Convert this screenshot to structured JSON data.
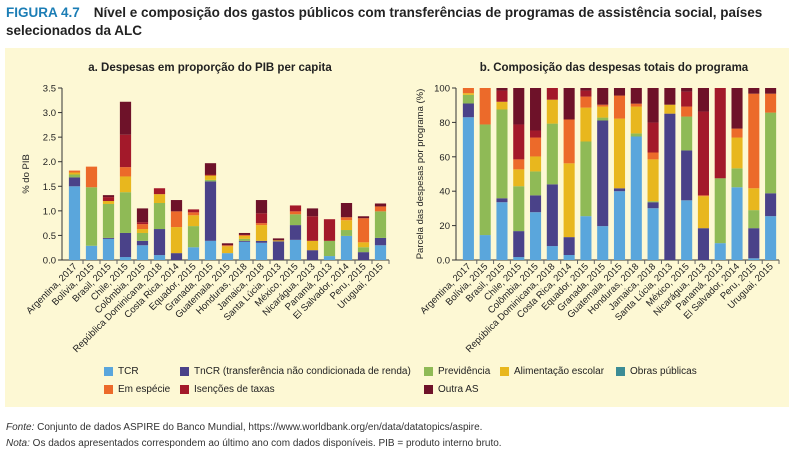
{
  "figure": {
    "label": "FIGURA 4.7",
    "title": "Nível e composição dos gastos públicos com transferências de programas de assistência social, países selecionados da ALC"
  },
  "legend": [
    {
      "name": "TCR",
      "color": "#5aa6dc"
    },
    {
      "name": "TnCR (transferência não condicionada de renda)",
      "color": "#4a4289"
    },
    {
      "name": "Previdência",
      "color": "#8fba56"
    },
    {
      "name": "Alimentação escolar",
      "color": "#e8b71e"
    },
    {
      "name": "Obras públicas",
      "color": "#3c8c95"
    },
    {
      "name": "Em espécie",
      "color": "#ec6a2a"
    },
    {
      "name": "Isenções de taxas",
      "color": "#a3192a"
    },
    {
      "name": "Outra AS",
      "color": "#6e1229"
    }
  ],
  "footnotes": {
    "source_label": "Fonte:",
    "source": " Conjunto de dados ASPIRE do Banco Mundial, https://www.worldbank.org/en/data/datatopics/aspire.",
    "note_label": "Nota:",
    "note": " Os dados apresentados correspondem ao último ano com dados disponíveis. PIB = produto interno bruto."
  },
  "chart_data": [
    {
      "type": "bar",
      "stacked": true,
      "title": "a. Despesas em proporção do PIB per capita",
      "xlabel": "",
      "ylabel": "% do PIB",
      "ylim": [
        0,
        3.5
      ],
      "yticks": [
        "0.0",
        "0.5",
        "1.0",
        "1.5",
        "2.0",
        "2.5",
        "3.0",
        "3.5"
      ],
      "categories": [
        "Argentina, 2017",
        "Bolívia, 2015",
        "Brasil, 2015",
        "Chile, 2015",
        "Colômbia, 2015",
        "República Dominicana, 2018",
        "Costa Rica, 2014",
        "Equador, 2015",
        "Granada, 2015",
        "Guatemala, 2015",
        "Honduras, 2018",
        "Jamaica, 2018",
        "Santa Lúcia, 2013",
        "México, 2015",
        "Nicarágua, 2013",
        "Panamá, 2013",
        "El Salvador, 2014",
        "Peru, 2015",
        "Uruguai, 2015"
      ],
      "series": [
        {
          "name": "TCR",
          "values": [
            1.5,
            0.29,
            0.43,
            0.06,
            0.3,
            0.1,
            0,
            0.26,
            0.39,
            0.14,
            0.37,
            0.35,
            0,
            0.41,
            0,
            0.08,
            0.49,
            0,
            0.3
          ]
        },
        {
          "name": "TnCR (transferência não condicionada de renda)",
          "values": [
            0.18,
            0,
            0.02,
            0.49,
            0.09,
            0.53,
            0.14,
            0,
            1.21,
            0,
            0.02,
            0.04,
            0.38,
            0.3,
            0.2,
            0,
            0,
            0.16,
            0.15
          ]
        },
        {
          "name": "Previdência",
          "values": [
            0.06,
            1.19,
            0.69,
            0.83,
            0.16,
            0.53,
            0,
            0.43,
            0.03,
            0,
            0.04,
            0,
            0,
            0.22,
            0,
            0.31,
            0.12,
            0.1,
            0.54
          ]
        },
        {
          "name": "Alimentação escolar",
          "values": [
            0.04,
            0,
            0.06,
            0.32,
            0.08,
            0.18,
            0.53,
            0.22,
            0.09,
            0.14,
            0.06,
            0.32,
            0.02,
            0,
            0.19,
            0,
            0.2,
            0.1,
            0
          ]
        },
        {
          "name": "Obras públicas",
          "values": [
            0,
            0,
            0,
            0,
            0,
            0,
            0,
            0,
            0,
            0,
            0,
            0,
            0,
            0,
            0,
            0,
            0,
            0,
            0
          ]
        },
        {
          "name": "Em espécie",
          "values": [
            0.04,
            0.42,
            0,
            0.19,
            0.1,
            0,
            0.32,
            0.06,
            0,
            0.02,
            0.02,
            0.04,
            0,
            0.06,
            0,
            0,
            0.06,
            0.49,
            0.1
          ]
        },
        {
          "name": "Isenções de taxas",
          "values": [
            0,
            0,
            0.08,
            0.66,
            0.04,
            0.12,
            0,
            0.06,
            0.02,
            0,
            0,
            0.2,
            0,
            0.12,
            0.5,
            0.44,
            0,
            0,
            0
          ]
        },
        {
          "name": "Outra AS",
          "values": [
            0,
            0,
            0.04,
            0.67,
            0.28,
            0,
            0.23,
            0,
            0.23,
            0.04,
            0.04,
            0.27,
            0.04,
            0,
            0.16,
            0,
            0.29,
            0.04,
            0.06
          ]
        }
      ]
    },
    {
      "type": "bar",
      "stacked": true,
      "title": "b. Composição das despesas totais do programa",
      "xlabel": "",
      "ylabel": "Parcela das despesas por programa (%)",
      "ylim": [
        0,
        100
      ],
      "yticks": [
        "0.0",
        "20",
        "40",
        "60",
        "80",
        "100"
      ],
      "categories": [
        "Argentina, 2017",
        "Bolívia, 2015",
        "Brasil, 2015",
        "Chile, 2015",
        "Colômbia, 2015",
        "República Dominicana, 2018",
        "Costa Rica, 2014",
        "Equador, 2015",
        "Granada, 2015",
        "Guatemala, 2015",
        "Honduras, 2018",
        "Jamaica, 2018",
        "Santa Lúcia, 2013",
        "México, 2015",
        "Nicarágua, 2013",
        "Panamá, 2013",
        "El Salvador, 2014",
        "Peru, 2015",
        "Uruguai, 2015"
      ],
      "series": [
        {
          "name": "TCR",
          "values": [
            83,
            14.5,
            33.6,
            1.7,
            27.8,
            8.1,
            2.9,
            25.5,
            19.7,
            40,
            71.8,
            30.1,
            0,
            34.7,
            0,
            9.8,
            42.3,
            1,
            25.5
          ]
        },
        {
          "name": "TnCR (transferência não condicionada de renda)",
          "values": [
            8,
            0,
            2.3,
            15.1,
            9.8,
            35.9,
            10.4,
            0,
            61.4,
            1.7,
            0,
            3.5,
            85.1,
            29,
            18.5,
            0,
            0,
            17.5,
            13.3
          ]
        },
        {
          "name": "Previdência",
          "values": [
            5,
            64.3,
            51.6,
            26.1,
            13.9,
            35.3,
            0,
            43.4,
            1.7,
            0,
            1.8,
            0.6,
            0,
            19.7,
            0,
            37.7,
            11,
            10.5,
            46.9
          ]
        },
        {
          "name": "Alimentação escolar",
          "values": [
            1,
            0,
            4.5,
            9.8,
            8.7,
            13.9,
            42.9,
            19.7,
            6.4,
            40.5,
            15.6,
            24.3,
            5.2,
            0,
            18.6,
            0,
            17.9,
            12.7,
            0
          ]
        },
        {
          "name": "Obras públicas",
          "values": [
            0,
            0,
            0,
            0,
            0,
            0,
            0,
            0,
            0,
            0,
            0,
            0,
            0,
            0,
            0,
            0,
            0,
            0,
            0
          ]
        },
        {
          "name": "Em espécie",
          "values": [
            3,
            21.2,
            0,
            5.8,
            11,
            0,
            25.5,
            6.4,
            1.1,
            13.4,
            1.7,
            4,
            0,
            5.8,
            0.5,
            0,
            5.2,
            55,
            11
          ]
        },
        {
          "name": "Isenções de taxas",
          "values": [
            0,
            0,
            6.5,
            20.3,
            4.1,
            6.8,
            0,
            3.5,
            0,
            0,
            0,
            17.4,
            0,
            8.7,
            48.7,
            52.5,
            0,
            0,
            0
          ]
        },
        {
          "name": "Outra AS",
          "values": [
            0,
            0,
            1.5,
            21.2,
            24.7,
            0,
            18.3,
            1.5,
            9.7,
            4.4,
            9.1,
            20.1,
            9.7,
            2.1,
            13.7,
            0,
            23.6,
            3.3,
            3.3
          ]
        }
      ]
    }
  ]
}
